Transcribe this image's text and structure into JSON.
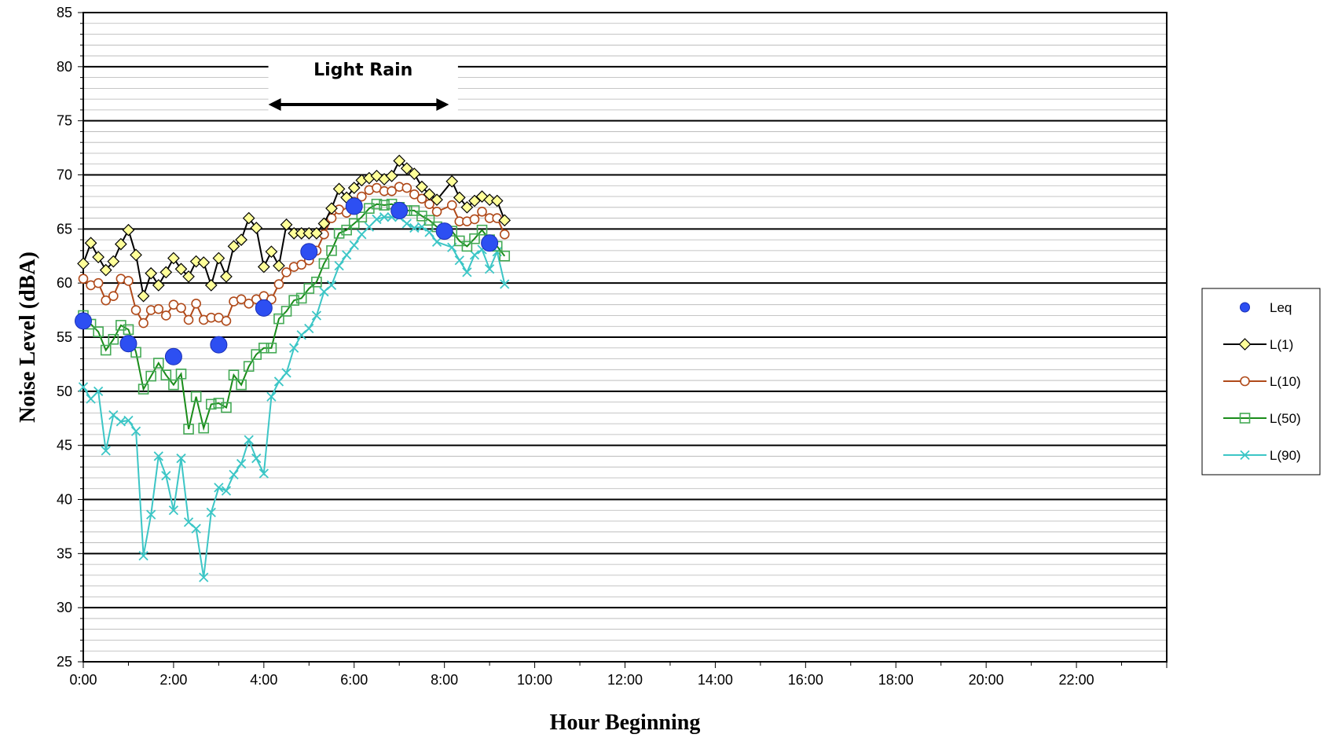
{
  "chart_data": {
    "type": "line",
    "title": "",
    "xlabel": "Hour Beginning",
    "ylabel": "Noise Level (dBA)",
    "xlim": [
      0,
      24
    ],
    "ylim": [
      25,
      85
    ],
    "x_unit": "hours",
    "x_tick_values": [
      0,
      2,
      4,
      6,
      8,
      10,
      12,
      14,
      16,
      18,
      20,
      22
    ],
    "x_tick_labels": [
      "0:00",
      "2:00",
      "4:00",
      "6:00",
      "8:00",
      "10:00",
      "12:00",
      "14:00",
      "16:00",
      "18:00",
      "20:00",
      "22:00"
    ],
    "y_ticks": [
      25,
      30,
      35,
      40,
      45,
      50,
      55,
      60,
      65,
      70,
      75,
      80,
      85
    ],
    "grid": {
      "major_y": true,
      "minor_y": true,
      "minor_y_step": 1,
      "x": false
    },
    "legend_position": "right",
    "annotations": [
      {
        "text": "Light Rain",
        "arrow_from": 4.1,
        "arrow_to": 8.1,
        "arrow_y": 76.5,
        "text_x": 6.2,
        "text_y": 79.2
      }
    ],
    "series": [
      {
        "name": "Leq",
        "color": "#2d4ff2",
        "marker": "circle",
        "line": false,
        "x": [
          0,
          1,
          2,
          3,
          4,
          5,
          6,
          7,
          8,
          9
        ],
        "y": [
          56.5,
          54.4,
          53.2,
          54.3,
          57.7,
          62.9,
          67.1,
          66.7,
          64.8,
          63.7
        ]
      },
      {
        "name": "L(1)",
        "color": "#000000",
        "marker": "diamond",
        "marker_fill": "#ffff99",
        "x": [
          0,
          0.167,
          0.333,
          0.5,
          0.667,
          0.833,
          1,
          1.167,
          1.333,
          1.5,
          1.667,
          1.833,
          2,
          2.167,
          2.333,
          2.5,
          2.667,
          2.833,
          3,
          3.167,
          3.333,
          3.5,
          3.667,
          3.833,
          4,
          4.167,
          4.333,
          4.5,
          4.667,
          4.833,
          5,
          5.167,
          5.333,
          5.5,
          5.667,
          5.833,
          6,
          6.167,
          6.333,
          6.5,
          6.667,
          6.833,
          7,
          7.167,
          7.333,
          7.5,
          7.667,
          7.833,
          8.167,
          8.333,
          8.5,
          8.667,
          8.833,
          9,
          9.167,
          9.333
        ],
        "y": [
          61.8,
          63.7,
          62.4,
          61.2,
          62.0,
          63.6,
          64.9,
          62.6,
          58.8,
          60.9,
          59.8,
          61.0,
          62.3,
          61.3,
          60.6,
          62.0,
          61.9,
          59.8,
          62.3,
          60.6,
          63.4,
          64.0,
          66.0,
          65.1,
          61.5,
          62.9,
          61.6,
          65.4,
          64.6,
          64.6,
          64.6,
          64.6,
          65.5,
          66.9,
          68.7,
          67.9,
          68.8,
          69.5,
          69.7,
          69.9,
          69.6,
          69.9,
          71.3,
          70.6,
          70.1,
          68.9,
          68.2,
          67.7,
          69.4,
          67.9,
          67.0,
          67.6,
          68.0,
          67.7,
          67.6,
          65.8
        ]
      },
      {
        "name": "L(10)",
        "color": "#b04a1a",
        "marker": "circle-open",
        "x": [
          0,
          0.167,
          0.333,
          0.5,
          0.667,
          0.833,
          1,
          1.167,
          1.333,
          1.5,
          1.667,
          1.833,
          2,
          2.167,
          2.333,
          2.5,
          2.667,
          2.833,
          3,
          3.167,
          3.333,
          3.5,
          3.667,
          3.833,
          4,
          4.167,
          4.333,
          4.5,
          4.667,
          4.833,
          5,
          5.167,
          5.333,
          5.5,
          5.667,
          5.833,
          6,
          6.167,
          6.333,
          6.5,
          6.667,
          6.833,
          7,
          7.167,
          7.333,
          7.5,
          7.667,
          7.833,
          8.167,
          8.333,
          8.5,
          8.667,
          8.833,
          9,
          9.167,
          9.333
        ],
        "y": [
          60.4,
          59.8,
          60.0,
          58.4,
          58.8,
          60.4,
          60.2,
          57.5,
          56.3,
          57.5,
          57.6,
          57.0,
          58.0,
          57.7,
          56.6,
          58.1,
          56.6,
          56.8,
          56.8,
          56.5,
          58.3,
          58.5,
          58.1,
          58.5,
          58.8,
          58.5,
          59.9,
          61.0,
          61.5,
          61.7,
          62.1,
          63.0,
          64.5,
          66.0,
          66.8,
          66.5,
          67.5,
          68.0,
          68.6,
          68.8,
          68.5,
          68.5,
          68.9,
          68.8,
          68.2,
          67.8,
          67.3,
          66.6,
          67.2,
          65.7,
          65.7,
          65.9,
          66.6,
          66.0,
          66.0,
          64.5
        ]
      },
      {
        "name": "L(50)",
        "color": "#1a8c1a",
        "marker": "square-open",
        "marker_color": "#44aa55",
        "x": [
          0,
          0.167,
          0.333,
          0.5,
          0.667,
          0.833,
          1,
          1.167,
          1.333,
          1.5,
          1.667,
          1.833,
          2,
          2.167,
          2.333,
          2.5,
          2.667,
          2.833,
          3,
          3.167,
          3.333,
          3.5,
          3.667,
          3.833,
          4,
          4.167,
          4.333,
          4.5,
          4.667,
          4.833,
          5,
          5.167,
          5.333,
          5.5,
          5.667,
          5.833,
          6,
          6.167,
          6.333,
          6.5,
          6.667,
          6.833,
          7,
          7.167,
          7.333,
          7.5,
          7.667,
          7.833,
          8.167,
          8.333,
          8.5,
          8.667,
          8.833,
          9,
          9.167,
          9.333
        ],
        "y": [
          57.0,
          56.2,
          55.5,
          53.8,
          54.8,
          56.1,
          55.7,
          53.6,
          50.2,
          51.4,
          52.6,
          51.5,
          50.6,
          51.6,
          46.5,
          49.5,
          46.6,
          48.8,
          48.9,
          48.5,
          51.5,
          50.6,
          52.3,
          53.4,
          54.0,
          54.0,
          56.7,
          57.4,
          58.4,
          58.6,
          59.5,
          60.1,
          61.8,
          63.0,
          64.6,
          64.9,
          65.5,
          66.1,
          66.9,
          67.3,
          67.2,
          67.3,
          67.0,
          66.7,
          66.7,
          66.2,
          65.8,
          65.2,
          64.8,
          63.9,
          63.4,
          64.1,
          64.9,
          64.0,
          63.4,
          62.5
        ]
      },
      {
        "name": "L(90)",
        "color": "#3cc6c6",
        "marker": "x",
        "x": [
          0,
          0.167,
          0.333,
          0.5,
          0.667,
          0.833,
          1,
          1.167,
          1.333,
          1.5,
          1.667,
          1.833,
          2,
          2.167,
          2.333,
          2.5,
          2.667,
          2.833,
          3,
          3.167,
          3.333,
          3.5,
          3.667,
          3.833,
          4,
          4.167,
          4.333,
          4.5,
          4.667,
          4.833,
          5,
          5.167,
          5.333,
          5.5,
          5.667,
          5.833,
          6,
          6.167,
          6.333,
          6.5,
          6.667,
          6.833,
          7,
          7.167,
          7.333,
          7.5,
          7.667,
          7.833,
          8.167,
          8.333,
          8.5,
          8.667,
          8.833,
          9,
          9.167,
          9.333
        ],
        "y": [
          50.4,
          49.3,
          50.0,
          44.5,
          47.8,
          47.2,
          47.3,
          46.3,
          34.8,
          38.6,
          44.0,
          42.2,
          39.0,
          43.8,
          37.9,
          37.3,
          32.8,
          38.8,
          41.1,
          40.8,
          42.3,
          43.3,
          45.5,
          43.8,
          42.4,
          49.5,
          50.9,
          51.7,
          54.0,
          55.2,
          55.8,
          57.0,
          59.2,
          59.8,
          61.6,
          62.6,
          63.5,
          64.5,
          65.2,
          65.9,
          66.1,
          66.1,
          66.1,
          65.5,
          65.1,
          65.2,
          64.7,
          63.8,
          63.3,
          62.1,
          61.0,
          62.6,
          63.1,
          61.3,
          62.9,
          59.9
        ]
      }
    ]
  }
}
